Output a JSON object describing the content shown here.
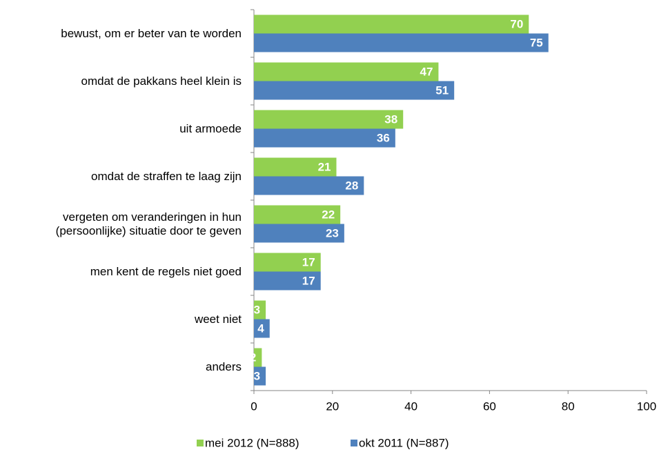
{
  "chart_data": {
    "type": "bar",
    "orientation": "horizontal",
    "categories": [
      "bewust, om er beter van te worden",
      "omdat de pakkans heel klein is",
      "uit armoede",
      "omdat de straffen te laag zijn",
      "vergeten om veranderingen in hun (persoonlijke) situatie door te geven",
      "men kent de regels niet goed",
      "weet niet",
      "anders"
    ],
    "series": [
      {
        "name": "mei 2012 (N=888)",
        "color": "#92d050",
        "values": [
          70,
          47,
          38,
          21,
          22,
          17,
          3,
          2
        ]
      },
      {
        "name": "okt 2011 (N=887)",
        "color": "#4f81bd",
        "values": [
          75,
          51,
          36,
          28,
          23,
          17,
          4,
          3
        ]
      }
    ],
    "xlim": [
      0,
      100
    ],
    "xticks": [
      0,
      20,
      40,
      60,
      80,
      100
    ],
    "legend": "bottom"
  }
}
